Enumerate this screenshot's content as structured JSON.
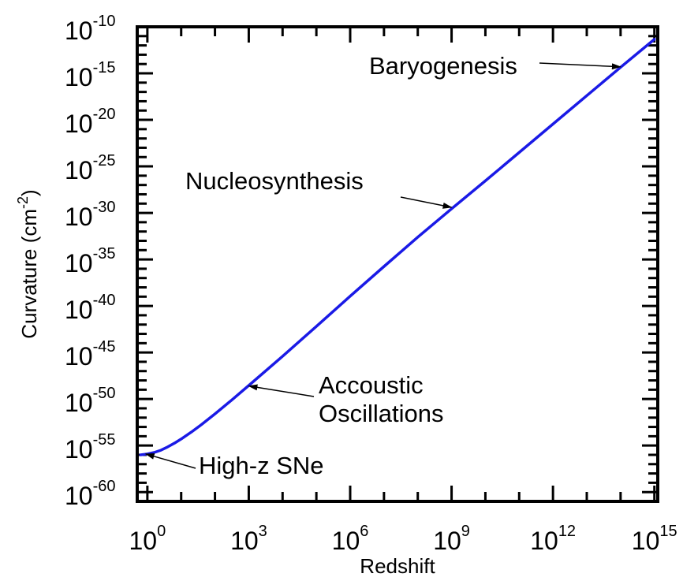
{
  "chart_data": {
    "type": "line",
    "xlabel": "Redshift",
    "ylabel": "Curvature (cm",
    "ylabel_sup": "-2",
    "ylabel_close": ")",
    "xscale": "log",
    "yscale": "log",
    "xlim_log10": [
      -0.3,
      15.1
    ],
    "ylim_log10": [
      -61,
      -10
    ],
    "xticks": [
      {
        "base": "10",
        "exp": "0",
        "log10": 0
      },
      {
        "base": "10",
        "exp": "3",
        "log10": 3
      },
      {
        "base": "10",
        "exp": "6",
        "log10": 6
      },
      {
        "base": "10",
        "exp": "9",
        "log10": 9
      },
      {
        "base": "10",
        "exp": "12",
        "log10": 12
      },
      {
        "base": "10",
        "exp": "15",
        "log10": 15
      }
    ],
    "yticks": [
      {
        "base": "10",
        "exp": "-10",
        "log10": -10
      },
      {
        "base": "10",
        "exp": "-15",
        "log10": -15
      },
      {
        "base": "10",
        "exp": "-20",
        "log10": -20
      },
      {
        "base": "10",
        "exp": "-25",
        "log10": -25
      },
      {
        "base": "10",
        "exp": "-30",
        "log10": -30
      },
      {
        "base": "10",
        "exp": "-35",
        "log10": -35
      },
      {
        "base": "10",
        "exp": "-40",
        "log10": -40
      },
      {
        "base": "10",
        "exp": "-45",
        "log10": -45
      },
      {
        "base": "10",
        "exp": "-50",
        "log10": -50
      },
      {
        "base": "10",
        "exp": "-55",
        "log10": -55
      },
      {
        "base": "10",
        "exp": "-60",
        "log10": -60
      }
    ],
    "grid": false,
    "series": [
      {
        "color": "#1a1ae6",
        "points_log10": [
          [
            -0.2,
            -56.0
          ],
          [
            0.0,
            -55.9
          ],
          [
            0.2,
            -55.75
          ],
          [
            0.4,
            -55.5
          ],
          [
            0.6,
            -55.15
          ],
          [
            0.8,
            -54.75
          ],
          [
            1.0,
            -54.3
          ],
          [
            1.3,
            -53.55
          ],
          [
            1.6,
            -52.75
          ],
          [
            2.0,
            -51.6
          ],
          [
            2.5,
            -50.1
          ],
          [
            3.0,
            -48.55
          ],
          [
            4.0,
            -45.4
          ],
          [
            5.0,
            -42.2
          ],
          [
            6.0,
            -38.95
          ],
          [
            7.0,
            -35.75
          ],
          [
            8.0,
            -32.6
          ],
          [
            9.0,
            -29.55
          ],
          [
            10.0,
            -26.55
          ],
          [
            11.0,
            -23.5
          ],
          [
            12.0,
            -20.45
          ],
          [
            13.0,
            -17.4
          ],
          [
            14.0,
            -14.35
          ],
          [
            15.0,
            -11.35
          ]
        ]
      }
    ],
    "annotations": [
      {
        "lines": [
          "Baryogenesis"
        ],
        "point_log10": [
          14.0,
          -14.3
        ],
        "anchor": "left"
      },
      {
        "lines": [
          "Nucleosynthesis"
        ],
        "point_log10": [
          9.0,
          -29.4
        ],
        "anchor": "left"
      },
      {
        "lines": [
          "Accoustic",
          "Oscillations"
        ],
        "point_log10": [
          3.0,
          -48.6
        ],
        "anchor": "right"
      },
      {
        "lines": [
          "High-z SNe"
        ],
        "point_log10": [
          -0.05,
          -55.9
        ],
        "anchor": "right"
      }
    ]
  }
}
